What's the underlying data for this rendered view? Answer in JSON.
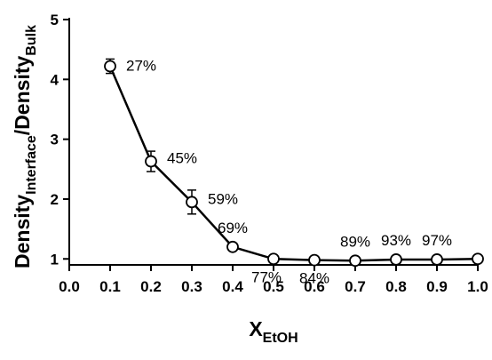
{
  "chart_data": {
    "type": "line",
    "xlabel": {
      "text": "X",
      "sub": "EtOH"
    },
    "ylabel": [
      {
        "text": "Density"
      },
      {
        "sub": "Interface"
      },
      {
        "text": "/Density"
      },
      {
        "sub": "Bulk"
      }
    ],
    "x": [
      0.1,
      0.2,
      0.3,
      0.4,
      0.5,
      0.6,
      0.7,
      0.8,
      0.9,
      1.0
    ],
    "values": [
      4.22,
      2.63,
      1.95,
      1.2,
      1.0,
      0.98,
      0.97,
      0.99,
      0.99,
      1.0
    ],
    "errors": [
      0.12,
      0.17,
      0.2,
      null,
      null,
      null,
      null,
      null,
      null,
      null
    ],
    "point_labels": [
      "27%",
      "45%",
      "59%",
      "69%",
      "77%",
      "84%",
      "89%",
      "93%",
      "97%",
      null
    ],
    "color": "#000000",
    "xlim": [
      0,
      1
    ],
    "xticks": [
      {
        "value": 0,
        "label": "0.0"
      },
      0.1,
      0.2,
      0.3,
      0.4,
      0.5,
      0.6,
      0.7,
      0.8,
      0.9,
      {
        "value": 1,
        "label": "1.0"
      }
    ],
    "ylim": [
      0.9,
      5
    ],
    "yticks": [
      1,
      2,
      3,
      4,
      5
    ]
  }
}
